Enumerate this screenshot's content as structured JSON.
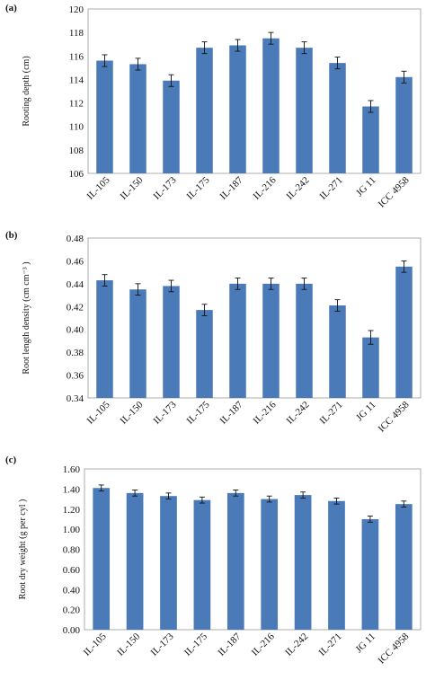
{
  "chart_data": [
    {
      "type": "bar",
      "panel": "(a)",
      "ylabel": "Rooting depth (cm)",
      "ylim": [
        106,
        120
      ],
      "yticks": [
        "106",
        "108",
        "110",
        "112",
        "114",
        "116",
        "118",
        "120"
      ],
      "categories": [
        "IL-105",
        "IL-150",
        "IL-173",
        "IL-175",
        "IL-187",
        "IL-216",
        "IL-242",
        "IL-271",
        "JG 11",
        "ICC 4958"
      ],
      "values": [
        115.6,
        115.3,
        113.9,
        116.7,
        116.9,
        117.5,
        116.7,
        115.4,
        111.7,
        114.2
      ],
      "errors": [
        0.5,
        0.5,
        0.5,
        0.5,
        0.5,
        0.5,
        0.5,
        0.5,
        0.5,
        0.5
      ],
      "grid": false,
      "color": "#4a7ab8"
    },
    {
      "type": "bar",
      "panel": "(b)",
      "ylabel": "Root length density (cm cm⁻³ )",
      "ylim": [
        0.34,
        0.48
      ],
      "yticks": [
        "0.34",
        "0.36",
        "0.38",
        "0.40",
        "0.42",
        "0.44",
        "0.46",
        "0.48"
      ],
      "categories": [
        "IL-105",
        "IL-150",
        "IL-173",
        "IL-175",
        "IL-187",
        "IL-216",
        "IL-242",
        "IL-271",
        "JG 11",
        "ICC 4958"
      ],
      "values": [
        0.443,
        0.435,
        0.438,
        0.417,
        0.44,
        0.44,
        0.44,
        0.421,
        0.393,
        0.455
      ],
      "errors": [
        0.005,
        0.005,
        0.005,
        0.005,
        0.005,
        0.005,
        0.005,
        0.005,
        0.006,
        0.005
      ],
      "grid": false,
      "color": "#4a7ab8"
    },
    {
      "type": "bar",
      "panel": "(c)",
      "ylabel": "Root dry weight (g per cyl )",
      "ylim": [
        0,
        1.6
      ],
      "yticks": [
        "0.00",
        "0.20",
        "0.40",
        "0.60",
        "0.80",
        "1.00",
        "1.20",
        "1.40",
        "1.60"
      ],
      "categories": [
        "IL-105",
        "IL-150",
        "IL-173",
        "IL-175",
        "IL-187",
        "IL-216",
        "IL-242",
        "IL-271",
        "JG 11",
        "ICC 4958"
      ],
      "values": [
        1.41,
        1.36,
        1.33,
        1.29,
        1.36,
        1.3,
        1.34,
        1.28,
        1.1,
        1.25
      ],
      "errors": [
        0.03,
        0.03,
        0.03,
        0.03,
        0.03,
        0.03,
        0.03,
        0.03,
        0.03,
        0.03
      ],
      "grid": false,
      "color": "#4a7ab8"
    }
  ]
}
